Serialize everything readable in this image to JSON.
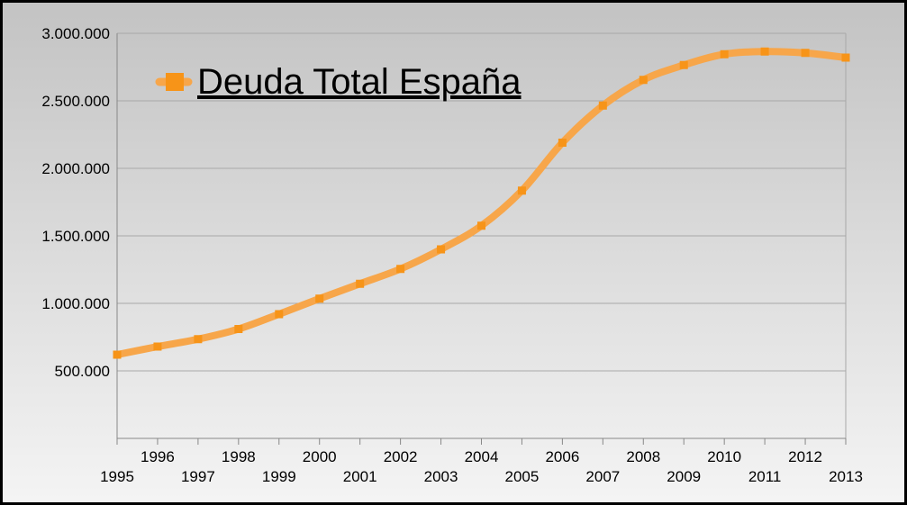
{
  "chart_data": {
    "type": "line",
    "title": "",
    "xlabel": "",
    "ylabel": "",
    "categories": [
      "1995",
      "1996",
      "1997",
      "1998",
      "1999",
      "2000",
      "2001",
      "2002",
      "2003",
      "2004",
      "2005",
      "2006",
      "2007",
      "2008",
      "2009",
      "2010",
      "2011",
      "2012",
      "2013"
    ],
    "series": [
      {
        "name": "Deuda Total España",
        "values": [
          620000,
          680000,
          735000,
          810000,
          920000,
          1035000,
          1145000,
          1255000,
          1400000,
          1575000,
          1835000,
          2190000,
          2465000,
          2655000,
          2765000,
          2845000,
          2865000,
          2855000,
          2820000
        ],
        "color": "#f7a64a",
        "marker_color": "#f79418"
      }
    ],
    "ylim": [
      0,
      3000000
    ],
    "yticks": [
      500000,
      1000000,
      1500000,
      2000000,
      2500000,
      3000000
    ],
    "ytick_labels": [
      "500.000",
      "1.000.000",
      "1.500.000",
      "2.000.000",
      "2.500.000",
      "3.000.000"
    ],
    "grid": true,
    "legend_position": "top-left"
  },
  "colors": {
    "gridline": "#a8a8a8",
    "axis": "#888888"
  }
}
